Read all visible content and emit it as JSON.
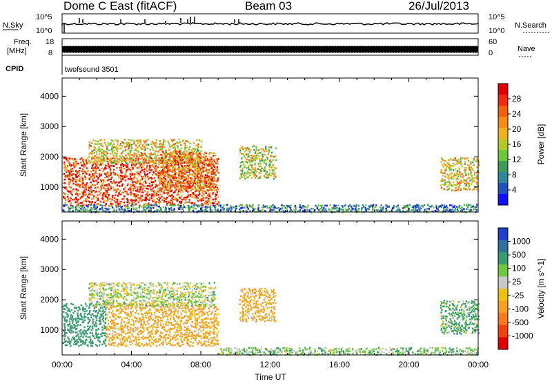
{
  "header": {
    "station": "Dome C East (fitACF)",
    "beam": "Beam 03",
    "date": "26/Jul/2013"
  },
  "strip_labels": {
    "nsky": "N.Sky",
    "nsearch": "N.Search",
    "freq_line1": "Freq.",
    "freq_line2": "[MHz]",
    "nave": "Nave",
    "cpid": "CPID",
    "cpid_value": "twofsound 3501",
    "nsky_ticks": [
      "10^5",
      "10^0"
    ],
    "nsearch_ticks": [
      "10^5",
      "10^0"
    ],
    "freq_ticks": [
      "18",
      "8"
    ],
    "nave_ticks": [
      "60",
      "0"
    ]
  },
  "chart_data": [
    {
      "type": "heatmap",
      "title": "",
      "xlabel": "",
      "ylabel": "Slant Range [km]",
      "x_ticks": [
        "00:00",
        "04:00",
        "08:00",
        "12:00",
        "16:00",
        "20:00",
        "00:00"
      ],
      "xlim_hours": [
        0,
        24
      ],
      "y_ticks": [
        "1000",
        "2000",
        "3000",
        "4000"
      ],
      "ylim_km": [
        180,
        4600
      ],
      "colorbar": {
        "label": "Power [dB]",
        "ticks": [
          "4",
          "8",
          "12",
          "16",
          "20",
          "24",
          "28"
        ],
        "colors": [
          "#1010ff",
          "#2050c0",
          "#2e8a9a",
          "#3f9a55",
          "#6cc83a",
          "#b5c82a",
          "#f0b020",
          "#f58a18",
          "#f06010",
          "#ee2a10",
          "#e00000"
        ]
      },
      "regions": [
        {
          "t0": 0.0,
          "t1": 9.0,
          "r0": 400,
          "r1": 2000,
          "value": 26
        },
        {
          "t0": 1.5,
          "t1": 8.0,
          "r0": 1800,
          "r1": 2600,
          "value": 18
        },
        {
          "t0": 5.5,
          "t1": 8.8,
          "r0": 900,
          "r1": 2200,
          "value": 22
        },
        {
          "t0": 10.2,
          "t1": 12.3,
          "r0": 1300,
          "r1": 2400,
          "value": 16
        },
        {
          "t0": 21.8,
          "t1": 24.0,
          "r0": 900,
          "r1": 2000,
          "value": 18
        },
        {
          "t0": 0.0,
          "t1": 24.0,
          "r0": 200,
          "r1": 450,
          "value": 8
        }
      ]
    },
    {
      "type": "heatmap",
      "title": "",
      "xlabel": "Time UT",
      "ylabel": "Slant Range [km]",
      "x_ticks": [
        "00:00",
        "04:00",
        "08:00",
        "12:00",
        "16:00",
        "20:00",
        "00:00"
      ],
      "xlim_hours": [
        0,
        24
      ],
      "y_ticks": [
        "1000",
        "2000",
        "3000",
        "4000"
      ],
      "ylim_km": [
        180,
        4600
      ],
      "colorbar": {
        "label": "Velocity [m s^-1]",
        "ticks": [
          "1000",
          "500",
          "100",
          "25",
          "-25",
          "-100",
          "-500",
          "-1000"
        ],
        "colors": [
          "#2040c8",
          "#3070a0",
          "#3a9a70",
          "#70c840",
          "#c8c8c8",
          "#f0c010",
          "#f5a020",
          "#f57a20",
          "#f04010",
          "#e00000"
        ]
      },
      "regions": [
        {
          "t0": 0.0,
          "t1": 2.5,
          "r0": 500,
          "r1": 1900,
          "value": 300
        },
        {
          "t0": 2.5,
          "t1": 9.0,
          "r0": 500,
          "r1": 1900,
          "value": -200
        },
        {
          "t0": 1.5,
          "t1": 8.8,
          "r0": 1800,
          "r1": 2600,
          "value": 20
        },
        {
          "t0": 10.2,
          "t1": 12.3,
          "r0": 1300,
          "r1": 2400,
          "value": -200
        },
        {
          "t0": 21.8,
          "t1": 24.0,
          "r0": 900,
          "r1": 2000,
          "value": 150
        },
        {
          "t0": 9.0,
          "t1": 24.0,
          "r0": 200,
          "r1": 450,
          "value": 60
        }
      ]
    }
  ]
}
